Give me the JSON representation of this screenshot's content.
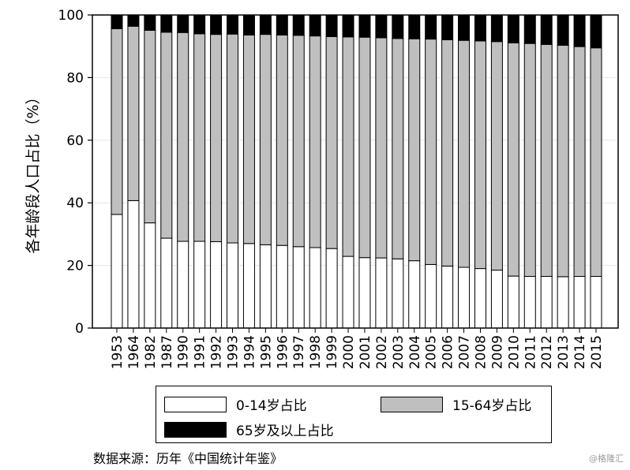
{
  "chart_data": {
    "type": "bar",
    "stacked": true,
    "categories": [
      "1953",
      "1964",
      "1982",
      "1987",
      "1990",
      "1991",
      "1992",
      "1993",
      "1994",
      "1995",
      "1996",
      "1997",
      "1998",
      "1999",
      "2000",
      "2001",
      "2002",
      "2003",
      "2004",
      "2005",
      "2006",
      "2007",
      "2008",
      "2009",
      "2010",
      "2011",
      "2012",
      "2013",
      "2014",
      "2015"
    ],
    "series": [
      {
        "name": "0-14岁占比",
        "color": "#ffffff",
        "values": [
          36.3,
          40.7,
          33.6,
          28.7,
          27.7,
          27.7,
          27.6,
          27.2,
          27.0,
          26.6,
          26.4,
          26.0,
          25.7,
          25.4,
          22.9,
          22.5,
          22.4,
          22.1,
          21.5,
          20.3,
          19.8,
          19.4,
          19.0,
          18.5,
          16.6,
          16.5,
          16.5,
          16.4,
          16.5,
          16.5
        ]
      },
      {
        "name": "15-64岁占比",
        "color": "#bfbfbf",
        "values": [
          59.3,
          55.7,
          61.5,
          65.8,
          66.7,
          66.3,
          66.2,
          66.7,
          66.6,
          67.2,
          67.2,
          67.5,
          67.6,
          67.7,
          70.1,
          70.4,
          70.3,
          70.4,
          70.9,
          72.0,
          72.3,
          72.5,
          72.7,
          73.0,
          74.5,
          74.4,
          74.1,
          73.9,
          73.4,
          73.0
        ]
      },
      {
        "name": "65岁及以上占比",
        "color": "#000000",
        "values": [
          4.4,
          3.6,
          4.9,
          5.5,
          5.6,
          6.0,
          6.2,
          6.1,
          6.4,
          6.2,
          6.4,
          6.5,
          6.7,
          6.9,
          7.0,
          7.1,
          7.3,
          7.5,
          7.6,
          7.7,
          7.9,
          8.1,
          8.3,
          8.5,
          8.9,
          9.1,
          9.4,
          9.7,
          10.1,
          10.5
        ]
      }
    ],
    "ylabel": "各年龄段人口占比（%）",
    "xlabel": "",
    "ylim": [
      0,
      100
    ],
    "yticks": [
      0,
      20,
      40,
      60,
      80,
      100
    ],
    "grid": true,
    "legend_position": "bottom"
  },
  "footer": {
    "source": "数据来源：历年《中国统计年鉴》",
    "watermark": "@格隆汇"
  }
}
